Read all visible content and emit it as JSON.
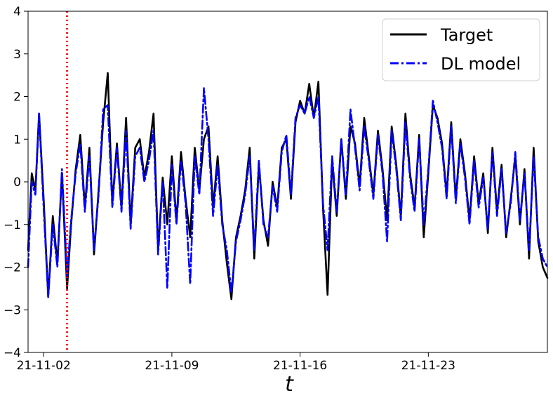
{
  "chart_data": {
    "type": "line",
    "title": "",
    "xlabel": "t",
    "ylabel": "",
    "x_tick_labels": [
      "21-11-02",
      "21-11-09",
      "21-11-16",
      "21-11-23"
    ],
    "x_tick_positions": [
      0,
      7,
      14,
      21
    ],
    "y_ticks": [
      -4,
      -3,
      -2,
      -1,
      0,
      1,
      2,
      3,
      4
    ],
    "xlim": [
      -0.85,
      27.5
    ],
    "ylim": [
      -4,
      4
    ],
    "grid": false,
    "legend_position": "top-right",
    "vline": {
      "x": 1.28,
      "color": "#ff0000",
      "style": "dotted"
    },
    "series": [
      {
        "name": "Target",
        "color": "#000000",
        "style": "solid",
        "x": [
          -0.85,
          -0.65,
          -0.45,
          -0.25,
          0.0,
          0.25,
          0.5,
          0.75,
          1.0,
          1.28,
          1.5,
          1.75,
          2.0,
          2.25,
          2.5,
          2.75,
          3.0,
          3.25,
          3.5,
          3.75,
          4.0,
          4.25,
          4.5,
          4.75,
          5.0,
          5.25,
          5.5,
          5.75,
          6.0,
          6.25,
          6.5,
          6.75,
          7.0,
          7.25,
          7.5,
          7.75,
          8.0,
          8.25,
          8.5,
          8.75,
          9.0,
          9.25,
          9.5,
          9.75,
          10.0,
          10.25,
          10.5,
          10.75,
          11.0,
          11.25,
          11.5,
          11.75,
          12.0,
          12.25,
          12.5,
          12.75,
          13.0,
          13.25,
          13.5,
          13.75,
          14.0,
          14.25,
          14.5,
          14.75,
          15.0,
          15.25,
          15.5,
          15.75,
          16.0,
          16.25,
          16.5,
          16.75,
          17.0,
          17.25,
          17.5,
          17.75,
          18.0,
          18.25,
          18.5,
          18.75,
          19.0,
          19.25,
          19.5,
          19.75,
          20.0,
          20.25,
          20.5,
          20.75,
          21.0,
          21.25,
          21.5,
          21.75,
          22.0,
          22.25,
          22.5,
          22.75,
          23.0,
          23.25,
          23.5,
          23.75,
          24.0,
          24.25,
          24.5,
          24.75,
          25.0,
          25.25,
          25.5,
          25.75,
          26.0,
          26.25,
          26.5,
          26.75,
          27.0,
          27.25,
          27.5
        ],
        "values": [
          -1.6,
          0.2,
          -0.2,
          1.6,
          -0.4,
          -2.7,
          -0.8,
          -1.9,
          0.2,
          -2.5,
          -1.0,
          0.3,
          1.1,
          -0.6,
          0.8,
          -1.7,
          -0.2,
          1.4,
          2.55,
          -0.5,
          0.9,
          -0.6,
          1.5,
          -1.0,
          0.8,
          1.0,
          0.1,
          0.7,
          1.6,
          -1.6,
          0.1,
          -1.0,
          0.6,
          -0.9,
          0.7,
          -0.4,
          -1.3,
          0.8,
          -0.2,
          1.0,
          1.3,
          -0.6,
          0.6,
          -0.9,
          -1.9,
          -2.75,
          -1.3,
          -0.8,
          -0.2,
          0.8,
          -1.8,
          0.4,
          -0.9,
          -1.5,
          0.0,
          -0.6,
          0.8,
          1.0,
          -0.4,
          1.4,
          1.9,
          1.6,
          2.3,
          1.5,
          2.35,
          -0.6,
          -2.65,
          0.5,
          -0.8,
          1.0,
          -0.4,
          1.3,
          0.9,
          -0.1,
          1.5,
          0.6,
          -0.3,
          1.2,
          0.3,
          -0.9,
          1.3,
          0.4,
          -0.8,
          1.6,
          0.2,
          -0.6,
          1.1,
          -1.3,
          0.2,
          1.8,
          1.5,
          0.9,
          -0.3,
          1.4,
          -0.4,
          1.0,
          0.2,
          -0.9,
          0.6,
          -0.5,
          0.2,
          -1.2,
          0.8,
          -0.7,
          0.4,
          -1.3,
          -0.4,
          0.6,
          -1.0,
          0.3,
          -1.8,
          0.8,
          -1.4,
          -2.0,
          -2.25
        ]
      },
      {
        "name": "DL model",
        "color": "#0000ff",
        "style": "dashdot",
        "x": [
          -0.85,
          -0.65,
          -0.45,
          -0.25,
          0.0,
          0.25,
          0.5,
          0.75,
          1.0,
          1.28,
          1.5,
          1.75,
          2.0,
          2.25,
          2.5,
          2.75,
          3.0,
          3.25,
          3.5,
          3.75,
          4.0,
          4.25,
          4.5,
          4.75,
          5.0,
          5.25,
          5.5,
          5.75,
          6.0,
          6.25,
          6.5,
          6.75,
          7.0,
          7.25,
          7.5,
          7.75,
          8.0,
          8.25,
          8.5,
          8.75,
          9.0,
          9.25,
          9.5,
          9.75,
          10.0,
          10.25,
          10.5,
          10.75,
          11.0,
          11.25,
          11.5,
          11.75,
          12.0,
          12.25,
          12.5,
          12.75,
          13.0,
          13.25,
          13.5,
          13.75,
          14.0,
          14.25,
          14.5,
          14.75,
          15.0,
          15.25,
          15.5,
          15.75,
          16.0,
          16.25,
          16.5,
          16.75,
          17.0,
          17.25,
          17.5,
          17.75,
          18.0,
          18.25,
          18.5,
          18.75,
          19.0,
          19.25,
          19.5,
          19.75,
          20.0,
          20.25,
          20.5,
          20.75,
          21.0,
          21.25,
          21.5,
          21.75,
          22.0,
          22.25,
          22.5,
          22.75,
          23.0,
          23.25,
          23.5,
          23.75,
          24.0,
          24.25,
          24.5,
          24.75,
          25.0,
          25.25,
          25.5,
          25.75,
          26.0,
          26.25,
          26.5,
          26.75,
          27.0,
          27.25,
          27.5
        ],
        "values": [
          -2.0,
          0.0,
          -0.3,
          1.6,
          -0.6,
          -2.7,
          -1.0,
          -2.0,
          0.3,
          -2.2,
          -0.9,
          0.2,
          0.9,
          -0.7,
          0.6,
          -1.6,
          -0.3,
          1.7,
          1.8,
          -0.6,
          0.8,
          -0.7,
          1.2,
          -1.1,
          0.6,
          0.8,
          0.0,
          0.5,
          1.2,
          -1.7,
          0.0,
          -2.5,
          0.4,
          -1.0,
          0.5,
          -0.5,
          -2.4,
          0.6,
          -0.3,
          2.2,
          1.0,
          -0.8,
          0.4,
          -1.0,
          -1.6,
          -2.6,
          -1.4,
          -0.9,
          -0.3,
          0.6,
          -1.6,
          0.5,
          -1.0,
          -1.3,
          -0.1,
          -0.7,
          0.7,
          1.1,
          -0.3,
          1.5,
          1.8,
          1.6,
          2.0,
          1.5,
          2.0,
          -0.5,
          -1.6,
          0.6,
          -0.7,
          1.0,
          -0.3,
          1.7,
          0.8,
          -0.2,
          1.3,
          0.5,
          -0.4,
          1.1,
          0.2,
          -1.4,
          1.2,
          0.3,
          -0.9,
          1.4,
          0.1,
          -0.7,
          1.0,
          -1.0,
          0.3,
          1.9,
          1.4,
          0.8,
          -0.4,
          1.3,
          -0.5,
          0.9,
          0.1,
          -1.0,
          0.5,
          -0.6,
          0.1,
          -1.1,
          0.7,
          -0.8,
          0.3,
          -1.2,
          -0.5,
          0.7,
          -0.9,
          0.2,
          -1.6,
          0.6,
          -1.3,
          -1.8,
          -2.0
        ]
      }
    ]
  }
}
